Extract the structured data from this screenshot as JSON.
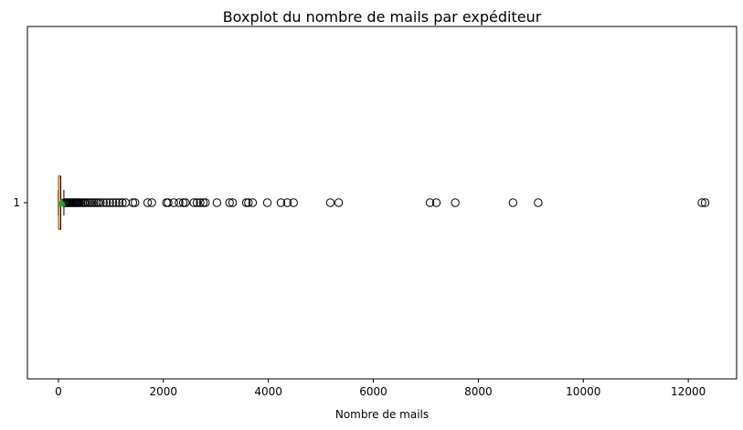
{
  "chart_data": {
    "type": "boxplot",
    "title": "Boxplot du nombre de mails par expéditeur",
    "xlabel": "Nombre de mails",
    "ylabel": "",
    "orientation": "horizontal",
    "xlim": [
      -590,
      12920
    ],
    "x_ticks": [
      0,
      2000,
      4000,
      6000,
      8000,
      10000,
      12000
    ],
    "y_ticks": [
      "1"
    ],
    "grid": false,
    "box": {
      "label": "1",
      "q1": 5,
      "median": 15,
      "q3": 45,
      "whisker_low": 1,
      "whisker_high": 105,
      "mean": 60
    },
    "outliers": [
      120,
      140,
      160,
      180,
      200,
      220,
      240,
      260,
      280,
      300,
      320,
      340,
      360,
      380,
      400,
      430,
      460,
      490,
      520,
      560,
      600,
      640,
      680,
      720,
      760,
      800,
      860,
      920,
      980,
      1040,
      1100,
      1160,
      1220,
      1280,
      1420,
      1460,
      1700,
      1780,
      2060,
      2090,
      2200,
      2300,
      2380,
      2420,
      2580,
      2640,
      2700,
      2760,
      2800,
      3020,
      3260,
      3320,
      3580,
      3620,
      3700,
      3980,
      4240,
      4360,
      4480,
      5180,
      5340,
      7080,
      7200,
      7560,
      8660,
      9140,
      12260,
      12320
    ],
    "colors": {
      "box": "#000000",
      "median": "#ff7f0e",
      "mean": "#2ca02c",
      "outlier_edge": "#000000",
      "frame": "#000000"
    }
  }
}
